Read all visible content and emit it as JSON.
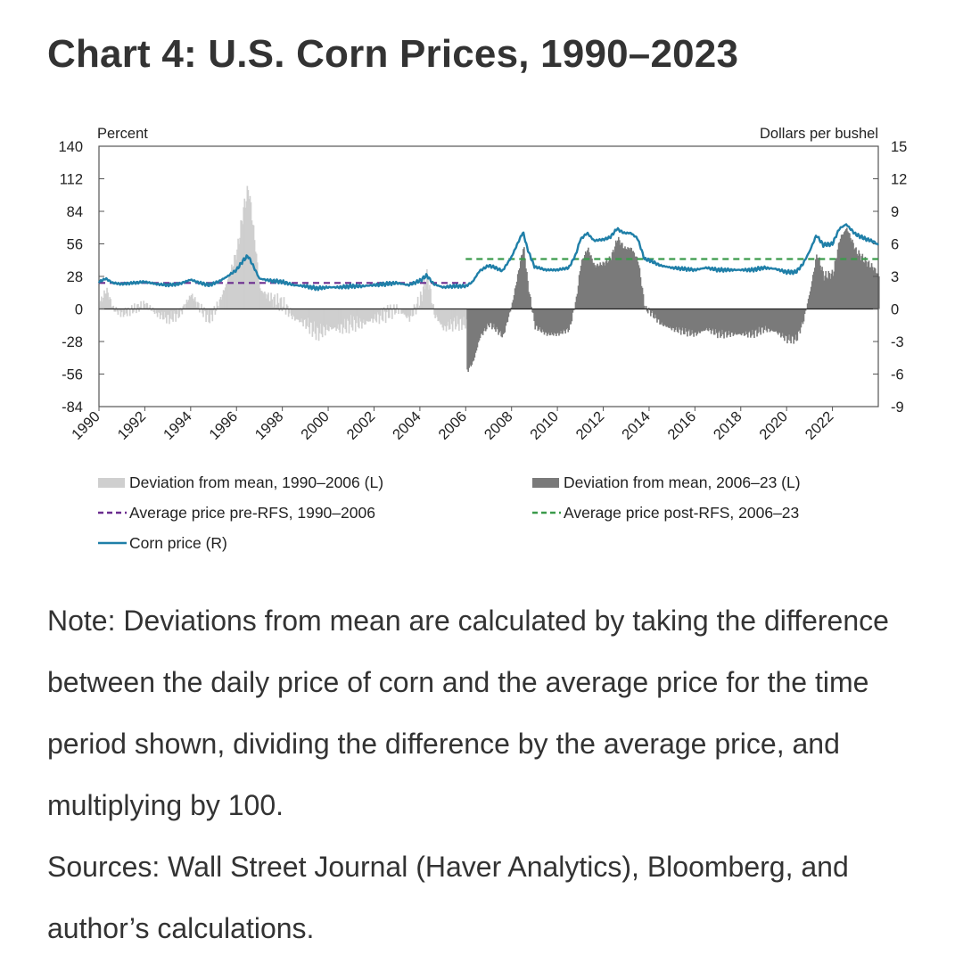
{
  "title": "Chart 4: U.S. Corn Prices, 1990–2023",
  "note": "Note: Deviations from mean are calculated by taking the difference between the daily price of corn and the average price for the time period shown, dividing the difference by the average price, and multiplying by 100.",
  "sources": "Sources: Wall Street Journal (Haver Analytics), Bloomberg, and author’s calculations.",
  "colors": {
    "dev_pre": "#cfcfcf",
    "dev_post": "#7a7a7a",
    "avg_pre": "#6b2d8f",
    "avg_post": "#3a9a4a",
    "corn": "#1f7fa8",
    "axis": "#555555"
  },
  "chart_data": {
    "type": "line",
    "left_axis_label": "Percent",
    "right_axis_label": "Dollars per bushel",
    "left_ylim": [
      -84,
      140
    ],
    "right_ylim": [
      -9,
      15
    ],
    "left_ticks": [
      "140",
      "112",
      "84",
      "56",
      "28",
      "0",
      "-28",
      "-56",
      "-84"
    ],
    "right_ticks": [
      "15",
      "12",
      "9",
      "6",
      "3",
      "0",
      "-3",
      "-6",
      "-9"
    ],
    "xlim": [
      1990,
      2024
    ],
    "x_tick_labels": [
      "1990",
      "1992",
      "1994",
      "1996",
      "1998",
      "2000",
      "2002",
      "2004",
      "2006",
      "2008",
      "2010",
      "2012",
      "2014",
      "2016",
      "2018",
      "2020",
      "2022"
    ],
    "legend": {
      "dev_pre": "Deviation from mean, 1990–2006 (L)",
      "dev_post": "Deviation from mean, 2006–23 (L)",
      "avg_pre": "Average price pre-RFS, 1990–2006",
      "avg_post": "Average price post-RFS, 2006–23",
      "corn": "Corn price (R)"
    },
    "average_pre_rfs": {
      "start": 1990,
      "end": 2006,
      "value": 2.4
    },
    "average_post_rfs": {
      "start": 2006,
      "end": 2024,
      "value": 4.6
    },
    "corn_price": {
      "x": [
        1990.0,
        1990.3,
        1990.6,
        1991.0,
        1991.5,
        1992.0,
        1992.5,
        1993.0,
        1993.5,
        1994.0,
        1994.4,
        1994.8,
        1995.2,
        1995.6,
        1996.0,
        1996.3,
        1996.5,
        1996.7,
        1997.0,
        1997.5,
        1998.0,
        1998.5,
        1999.0,
        1999.5,
        2000.0,
        2000.5,
        2001.0,
        2001.5,
        2002.0,
        2002.5,
        2003.0,
        2003.5,
        2004.0,
        2004.3,
        2004.6,
        2005.0,
        2005.5,
        2006.0,
        2006.3,
        2006.6,
        2007.0,
        2007.3,
        2007.6,
        2008.0,
        2008.3,
        2008.5,
        2008.7,
        2009.0,
        2009.5,
        2010.0,
        2010.5,
        2010.8,
        2011.0,
        2011.3,
        2011.6,
        2012.0,
        2012.3,
        2012.6,
        2012.9,
        2013.2,
        2013.5,
        2013.8,
        2014.0,
        2014.5,
        2015.0,
        2015.5,
        2016.0,
        2016.5,
        2017.0,
        2017.5,
        2018.0,
        2018.5,
        2019.0,
        2019.5,
        2020.0,
        2020.4,
        2020.7,
        2021.0,
        2021.3,
        2021.6,
        2022.0,
        2022.3,
        2022.6,
        2023.0,
        2023.4,
        2023.8,
        2024.0
      ],
      "values": [
        2.5,
        2.8,
        2.4,
        2.3,
        2.4,
        2.5,
        2.3,
        2.2,
        2.3,
        2.7,
        2.4,
        2.2,
        2.5,
        3.0,
        3.6,
        4.5,
        4.9,
        4.1,
        2.8,
        2.6,
        2.5,
        2.2,
        2.1,
        1.9,
        2.0,
        2.0,
        2.1,
        2.1,
        2.2,
        2.3,
        2.4,
        2.2,
        2.6,
        3.1,
        2.3,
        2.0,
        2.1,
        2.1,
        2.5,
        3.5,
        4.0,
        3.8,
        3.5,
        4.8,
        6.2,
        7.1,
        5.5,
        3.9,
        3.6,
        3.6,
        3.8,
        5.0,
        6.4,
        7.0,
        6.3,
        6.4,
        6.6,
        7.4,
        7.0,
        7.0,
        6.5,
        4.6,
        4.5,
        4.0,
        3.8,
        3.7,
        3.6,
        3.8,
        3.6,
        3.6,
        3.6,
        3.6,
        3.8,
        3.7,
        3.4,
        3.4,
        4.1,
        5.3,
        6.8,
        5.9,
        6.0,
        7.4,
        7.8,
        6.9,
        6.5,
        6.2,
        5.9
      ]
    }
  }
}
